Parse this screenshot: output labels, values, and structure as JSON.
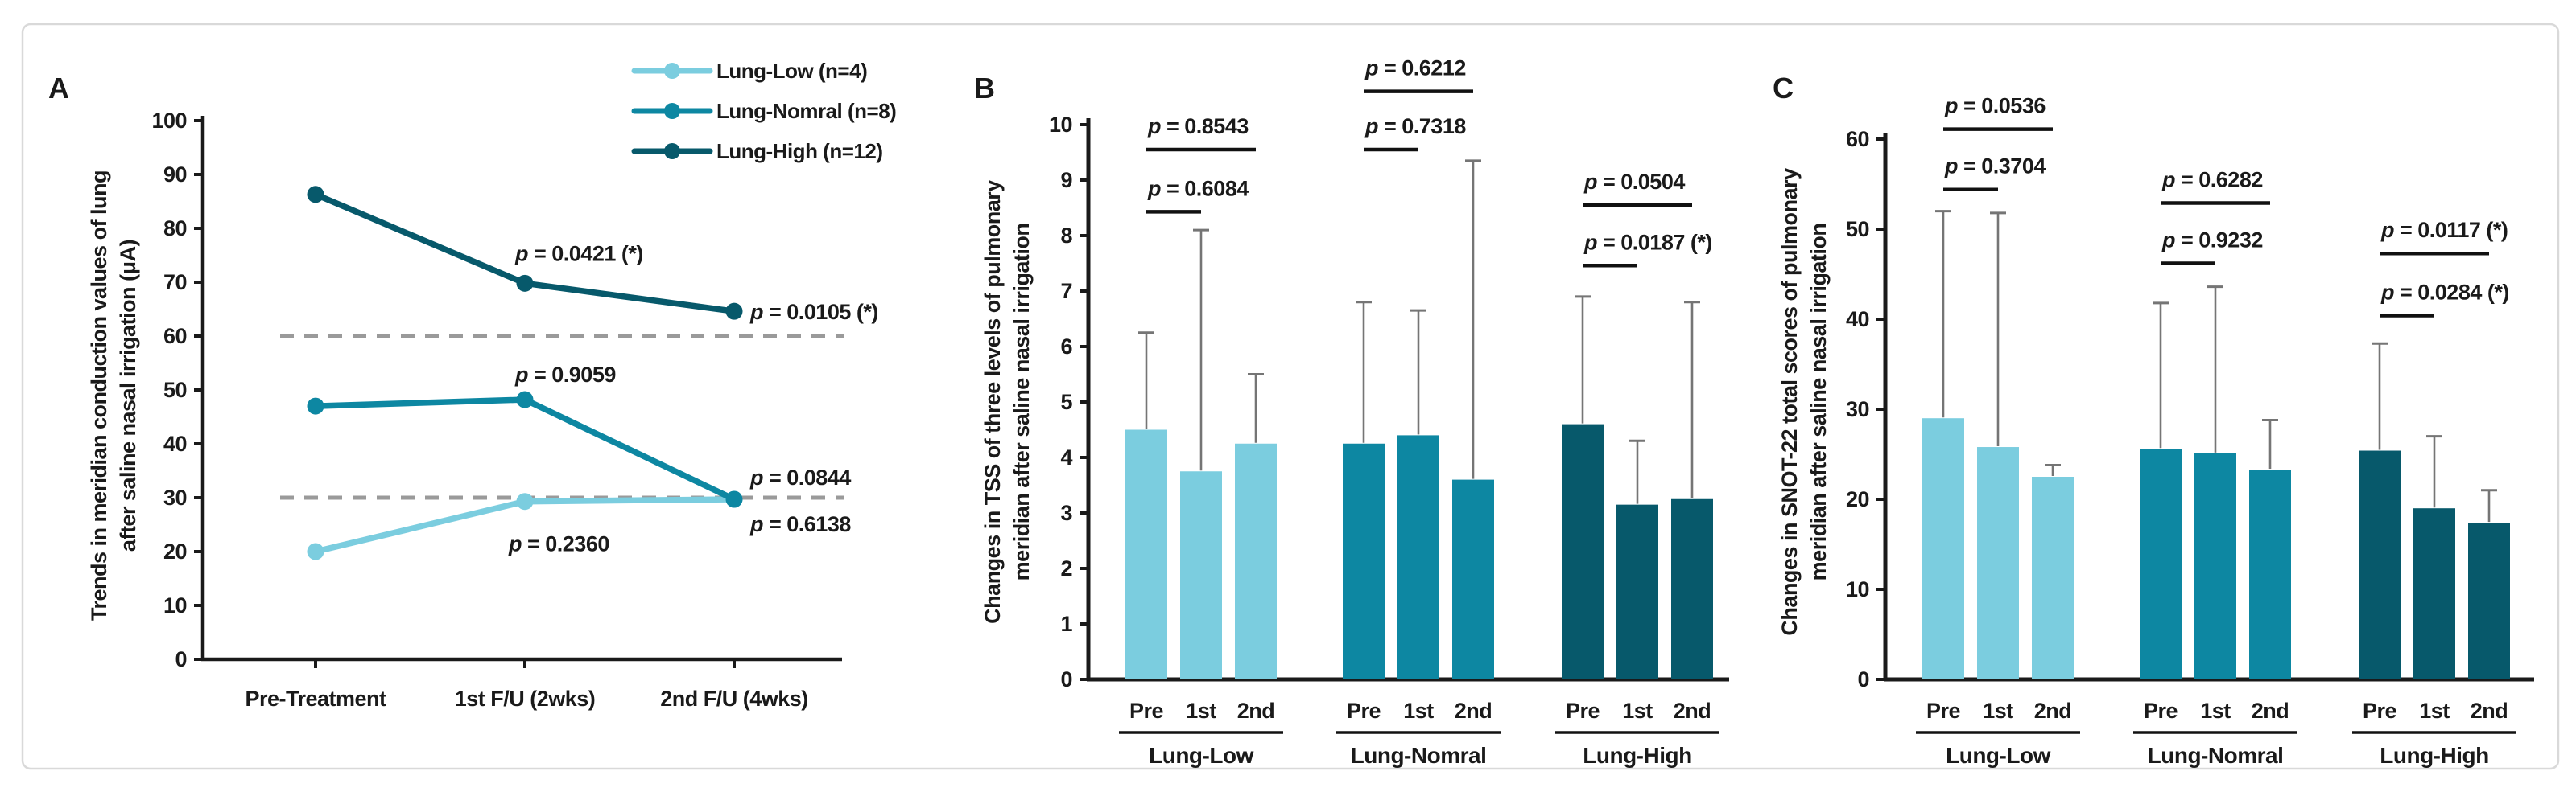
{
  "figure": {
    "panel_a_label": "A",
    "panel_b_label": "B",
    "panel_c_label": "C"
  },
  "colors": {
    "lung_low": "#7BCDDF",
    "lung_normal": "#0D87A2",
    "lung_high": "#07596B",
    "p_text_low": "#29ACD4",
    "p_text_normal": "#1590AD",
    "p_text_high": "#1F4E79",
    "p_text_black": "#111111",
    "error_bar": "#757575",
    "reference_line": "#9A9A9A",
    "axis": "#1A1A1A",
    "frame_border": "#D9D9D9"
  },
  "chart_data": [
    {
      "panel": "A",
      "type": "line",
      "ylabel": "Trends in meridian conduction values of lung after saline nasal irrigation (μA)",
      "ylabel_lines": [
        "Trends in meridian conduction values of lung",
        "after saline nasal irrigation (μA)"
      ],
      "ylim": [
        0,
        100
      ],
      "ytick_step": 10,
      "grid": false,
      "legend_position": "top-right",
      "categories": [
        "Pre-Treatment",
        "1st F/U (2wks)",
        "2nd F/U (4wks)"
      ],
      "reference_lines": [
        60,
        30
      ],
      "series": [
        {
          "name": "Lung-Low (n=4)",
          "color_key": "lung_low",
          "p_color_key": "p_text_low",
          "values": [
            20,
            29.3,
            29.7
          ],
          "p_annotations": [
            {
              "at": "1st F/U (2wks)",
              "text": "p = 0.2360",
              "placement": "below"
            },
            {
              "at": "2nd F/U (4wks)",
              "text": "p = 0.6138",
              "placement": "below-right"
            }
          ]
        },
        {
          "name": "Lung-Nomral (n=8)",
          "color_key": "lung_normal",
          "p_color_key": "p_text_normal",
          "values": [
            47,
            48.2,
            29.7
          ],
          "p_annotations": [
            {
              "at": "1st F/U (2wks)",
              "text": "p = 0.9059",
              "placement": "above"
            },
            {
              "at": "2nd F/U (4wks)",
              "text": "p = 0.0844",
              "placement": "above-right"
            }
          ]
        },
        {
          "name": "Lung-High (n=12)",
          "color_key": "lung_high",
          "p_color_key": "p_text_high",
          "values": [
            86.3,
            69.8,
            64.6
          ],
          "p_annotations": [
            {
              "at": "1st F/U (2wks)",
              "text": "p = 0.0421 (*)",
              "placement": "above"
            },
            {
              "at": "2nd F/U (4wks)",
              "text": "p = 0.0105 (*)",
              "placement": "right"
            }
          ]
        }
      ]
    },
    {
      "panel": "B",
      "type": "bar",
      "ylabel": "Changes in TSS of three levels of pulmonary meridian after saline nasal irrigation",
      "ylabel_lines": [
        "Changes in TSS of three levels of pulmonary",
        "meridian after saline nasal irrigation"
      ],
      "ylim": [
        0,
        10
      ],
      "ytick_step": 1,
      "grid": false,
      "bar_labels": [
        "Pre",
        "1st",
        "2nd"
      ],
      "groups": [
        {
          "name": "Lung-Low",
          "color_key": "lung_low",
          "values": [
            4.5,
            3.75,
            4.25
          ],
          "error_tops": [
            6.25,
            8.1,
            5.5
          ],
          "p_upper": {
            "text": "p = 0.8543",
            "compares": [
              "Pre",
              "2nd"
            ]
          },
          "p_lower": {
            "text": "p = 0.6084",
            "compares": [
              "Pre",
              "1st"
            ]
          }
        },
        {
          "name": "Lung-Nomral",
          "color_key": "lung_normal",
          "values": [
            4.25,
            4.4,
            3.6
          ],
          "error_tops": [
            6.8,
            6.65,
            9.35
          ],
          "p_upper": {
            "text": "p = 0.6212",
            "compares": [
              "Pre",
              "2nd"
            ]
          },
          "p_lower": {
            "text": "p = 0.7318",
            "compares": [
              "Pre",
              "1st"
            ]
          }
        },
        {
          "name": "Lung-High",
          "color_key": "lung_high",
          "values": [
            4.6,
            3.15,
            3.25
          ],
          "error_tops": [
            6.9,
            4.3,
            6.8
          ],
          "p_upper": {
            "text": "p = 0.0504",
            "compares": [
              "Pre",
              "2nd"
            ]
          },
          "p_lower": {
            "text": "p = 0.0187 (*)",
            "compares": [
              "Pre",
              "1st"
            ]
          }
        }
      ]
    },
    {
      "panel": "C",
      "type": "bar",
      "ylabel": "Changes in SNOT-22 total scores of pulmonary meridian after saline nasal irrigation",
      "ylabel_lines": [
        "Changes in SNOT-22 total scores of pulmonary",
        "meridian after saline nasal irrigation"
      ],
      "ylim": [
        0,
        60
      ],
      "ytick_step": 10,
      "grid": false,
      "bar_labels": [
        "Pre",
        "1st",
        "2nd"
      ],
      "groups": [
        {
          "name": "Lung-Low",
          "color_key": "lung_low",
          "values": [
            29,
            25.8,
            22.5
          ],
          "error_tops": [
            52,
            51.8,
            23.8
          ],
          "p_upper": {
            "text": "p = 0.0536",
            "compares": [
              "Pre",
              "2nd"
            ]
          },
          "p_lower": {
            "text": "p = 0.3704",
            "compares": [
              "Pre",
              "1st"
            ]
          }
        },
        {
          "name": "Lung-Nomral",
          "color_key": "lung_normal",
          "values": [
            25.6,
            25.1,
            23.3
          ],
          "error_tops": [
            41.8,
            43.6,
            28.8
          ],
          "p_upper": {
            "text": "p = 0.6282",
            "compares": [
              "Pre",
              "2nd"
            ]
          },
          "p_lower": {
            "text": "p = 0.9232",
            "compares": [
              "Pre",
              "1st"
            ]
          }
        },
        {
          "name": "Lung-High",
          "color_key": "lung_high",
          "values": [
            25.4,
            19,
            17.4
          ],
          "error_tops": [
            37.3,
            27,
            21
          ],
          "p_upper": {
            "text": "p = 0.0117 (*)",
            "compares": [
              "Pre",
              "2nd"
            ]
          },
          "p_lower": {
            "text": "p = 0.0284 (*)",
            "compares": [
              "Pre",
              "1st"
            ]
          }
        }
      ]
    }
  ]
}
